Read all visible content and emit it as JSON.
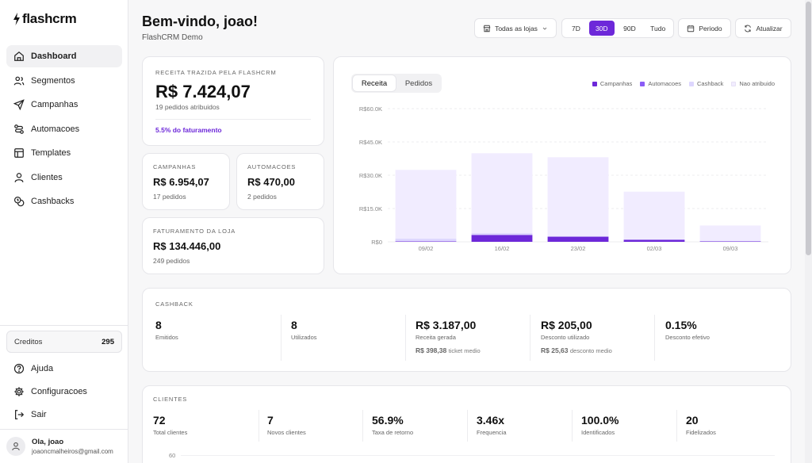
{
  "app": {
    "logo_text": "flashcrm"
  },
  "sidebar": {
    "items": [
      {
        "label": "Dashboard",
        "icon": "home-icon",
        "active": true
      },
      {
        "label": "Segmentos",
        "icon": "users-icon"
      },
      {
        "label": "Campanhas",
        "icon": "send-icon"
      },
      {
        "label": "Automacoes",
        "icon": "workflow-icon"
      },
      {
        "label": "Templates",
        "icon": "template-icon"
      },
      {
        "label": "Clientes",
        "icon": "user-icon"
      },
      {
        "label": "Cashbacks",
        "icon": "coins-icon"
      }
    ],
    "credits_label": "Creditos",
    "credits_value": "295",
    "bottom_items": [
      {
        "label": "Ajuda",
        "icon": "help-icon"
      },
      {
        "label": "Configuracoes",
        "icon": "gear-icon"
      },
      {
        "label": "Sair",
        "icon": "logout-icon"
      }
    ],
    "user": {
      "greeting": "Ola, joao",
      "email": "joaoncmalheiros@gmail.com"
    }
  },
  "header": {
    "title": "Bem-vindo, joao!",
    "subtitle": "FlashCRM Demo",
    "store_select": "Todas as lojas",
    "ranges": [
      "7D",
      "30D",
      "90D",
      "Tudo"
    ],
    "active_range": "30D",
    "period_label": "Periodo",
    "refresh_label": "Atualizar"
  },
  "revenue": {
    "label": "RECEITA TRAZIDA PELA FLASHCRM",
    "value": "R$ 7.424,07",
    "orders": "19 pedidos atribuidos",
    "share": "5.5% do faturamento"
  },
  "campaigns": {
    "label": "CAMPANHAS",
    "value": "R$ 6.954,07",
    "orders": "17 pedidos"
  },
  "automations": {
    "label": "AUTOMACOES",
    "value": "R$ 470,00",
    "orders": "2 pedidos"
  },
  "store_revenue": {
    "label": "FATURAMENTO DA LOJA",
    "value": "R$ 134.446,00",
    "orders": "249 pedidos"
  },
  "chart": {
    "tabs": [
      "Receita",
      "Pedidos"
    ],
    "active_tab": "Receita",
    "legend": [
      "Campanhas",
      "Automacoes",
      "Cashback",
      "Nao atribuido"
    ]
  },
  "chart_data": {
    "type": "bar",
    "stacked": true,
    "categories": [
      "09/02",
      "16/02",
      "23/02",
      "02/03",
      "09/03"
    ],
    "series": [
      {
        "name": "Campanhas",
        "color": "#6d28d9",
        "values": [
          200,
          3100,
          2300,
          900,
          200
        ]
      },
      {
        "name": "Automacoes",
        "color": "#8b5cf6",
        "values": [
          0,
          0,
          0,
          0,
          0
        ]
      },
      {
        "name": "Cashback",
        "color": "#ddd6fe",
        "values": [
          1200,
          800,
          300,
          200,
          150
        ]
      },
      {
        "name": "Nao atribuido",
        "color": "#f1ecff",
        "values": [
          31000,
          36000,
          35500,
          21500,
          7000
        ]
      }
    ],
    "yticks": [
      "R$0",
      "R$15.0K",
      "R$30.0K",
      "R$45.0K",
      "R$60.0K"
    ],
    "ylim": [
      0,
      60000
    ],
    "legend_position": "top-right",
    "grid": true
  },
  "cashback": {
    "label": "CASHBACK",
    "stats": [
      {
        "value": "8",
        "label": "Emitidos"
      },
      {
        "value": "8",
        "label": "Utilizados"
      },
      {
        "value": "R$ 3.187,00",
        "label": "Receita gerada",
        "extra_value": "R$ 398,38",
        "extra_label": "ticket medio"
      },
      {
        "value": "R$ 205,00",
        "label": "Desconto utilizado",
        "extra_value": "R$ 25,63",
        "extra_label": "desconto medio"
      },
      {
        "value": "0.15%",
        "label": "Desconto efetivo"
      }
    ]
  },
  "clients": {
    "label": "CLIENTES",
    "stats": [
      {
        "value": "72",
        "label": "Total clientes"
      },
      {
        "value": "7",
        "label": "Novos clientes"
      },
      {
        "value": "56.9%",
        "label": "Taxa de retorno"
      },
      {
        "value": "3.46x",
        "label": "Frequencia"
      },
      {
        "value": "100.0%",
        "label": "Identificados"
      },
      {
        "value": "20",
        "label": "Fidelizados"
      }
    ],
    "chart_tick": "60"
  },
  "colors": {
    "accent": "#6d28d9"
  }
}
